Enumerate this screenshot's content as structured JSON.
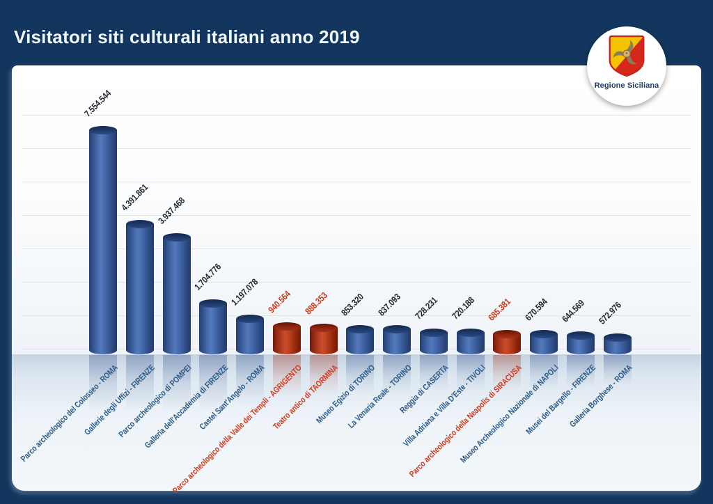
{
  "header": {
    "title": "Visitatori siti culturali italiani anno 2019",
    "logo": {
      "text": "Regione Siciliana"
    }
  },
  "chart_data": {
    "type": "bar",
    "title": "Visitatori siti culturali italiani anno 2019",
    "orientation": "vertical",
    "style": "3d-cylinder",
    "ylim": [
      0,
      7554544
    ],
    "grid": true,
    "legend": false,
    "palette": {
      "blue": "#3a5d9e",
      "red": "#b23c20"
    },
    "label_colors": {
      "blue": "#2b5b88",
      "red": "#d03a1c"
    },
    "bars": [
      {
        "label": "Parco archeologico del Colosseo - ROMA",
        "value": 7554544,
        "display": "7.554.544",
        "color": "blue"
      },
      {
        "label": "Gallerie degli Uffizi - FIRENZE",
        "value": 4391861,
        "display": "4.391.861",
        "color": "blue"
      },
      {
        "label": "Parco archeologico di POMPEI",
        "value": 3937468,
        "display": "3.937.468",
        "color": "blue"
      },
      {
        "label": "Galleria dell'Accademia di FIRENZE",
        "value": 1704776,
        "display": "1.704.776",
        "color": "blue"
      },
      {
        "label": "Castel Sant'Angelo - ROMA",
        "value": 1197078,
        "display": "1.197.078",
        "color": "blue"
      },
      {
        "label": "Parco archeologico della Valle dei Templi - AGRIGENTO",
        "value": 940564,
        "display": "940.564",
        "color": "red"
      },
      {
        "label": "Teatro antico di TAORMINA",
        "value": 888353,
        "display": "888.353",
        "color": "red"
      },
      {
        "label": "Museo Egizio di TORINO",
        "value": 853320,
        "display": "853.320",
        "color": "blue"
      },
      {
        "label": "La Venaria Reale - TORINO",
        "value": 837093,
        "display": "837.093",
        "color": "blue"
      },
      {
        "label": "Reggia di CASERTA",
        "value": 728231,
        "display": "728.231",
        "color": "blue"
      },
      {
        "label": "Villa Adriana e Villa D'Este - TIVOLI",
        "value": 720188,
        "display": "720.188",
        "color": "blue"
      },
      {
        "label": "Parco archeologico della Neapolis di SIRACUSA",
        "value": 685381,
        "display": "685.381",
        "color": "red"
      },
      {
        "label": "Museo Archeologico Nazionale di NAPOLI",
        "value": 670594,
        "display": "670.594",
        "color": "blue"
      },
      {
        "label": "Musei del Bargello - FIRENZE",
        "value": 644569,
        "display": "644.569",
        "color": "blue"
      },
      {
        "label": "Galleria Borghese - ROMA",
        "value": 572976,
        "display": "572.976",
        "color": "blue"
      }
    ]
  }
}
